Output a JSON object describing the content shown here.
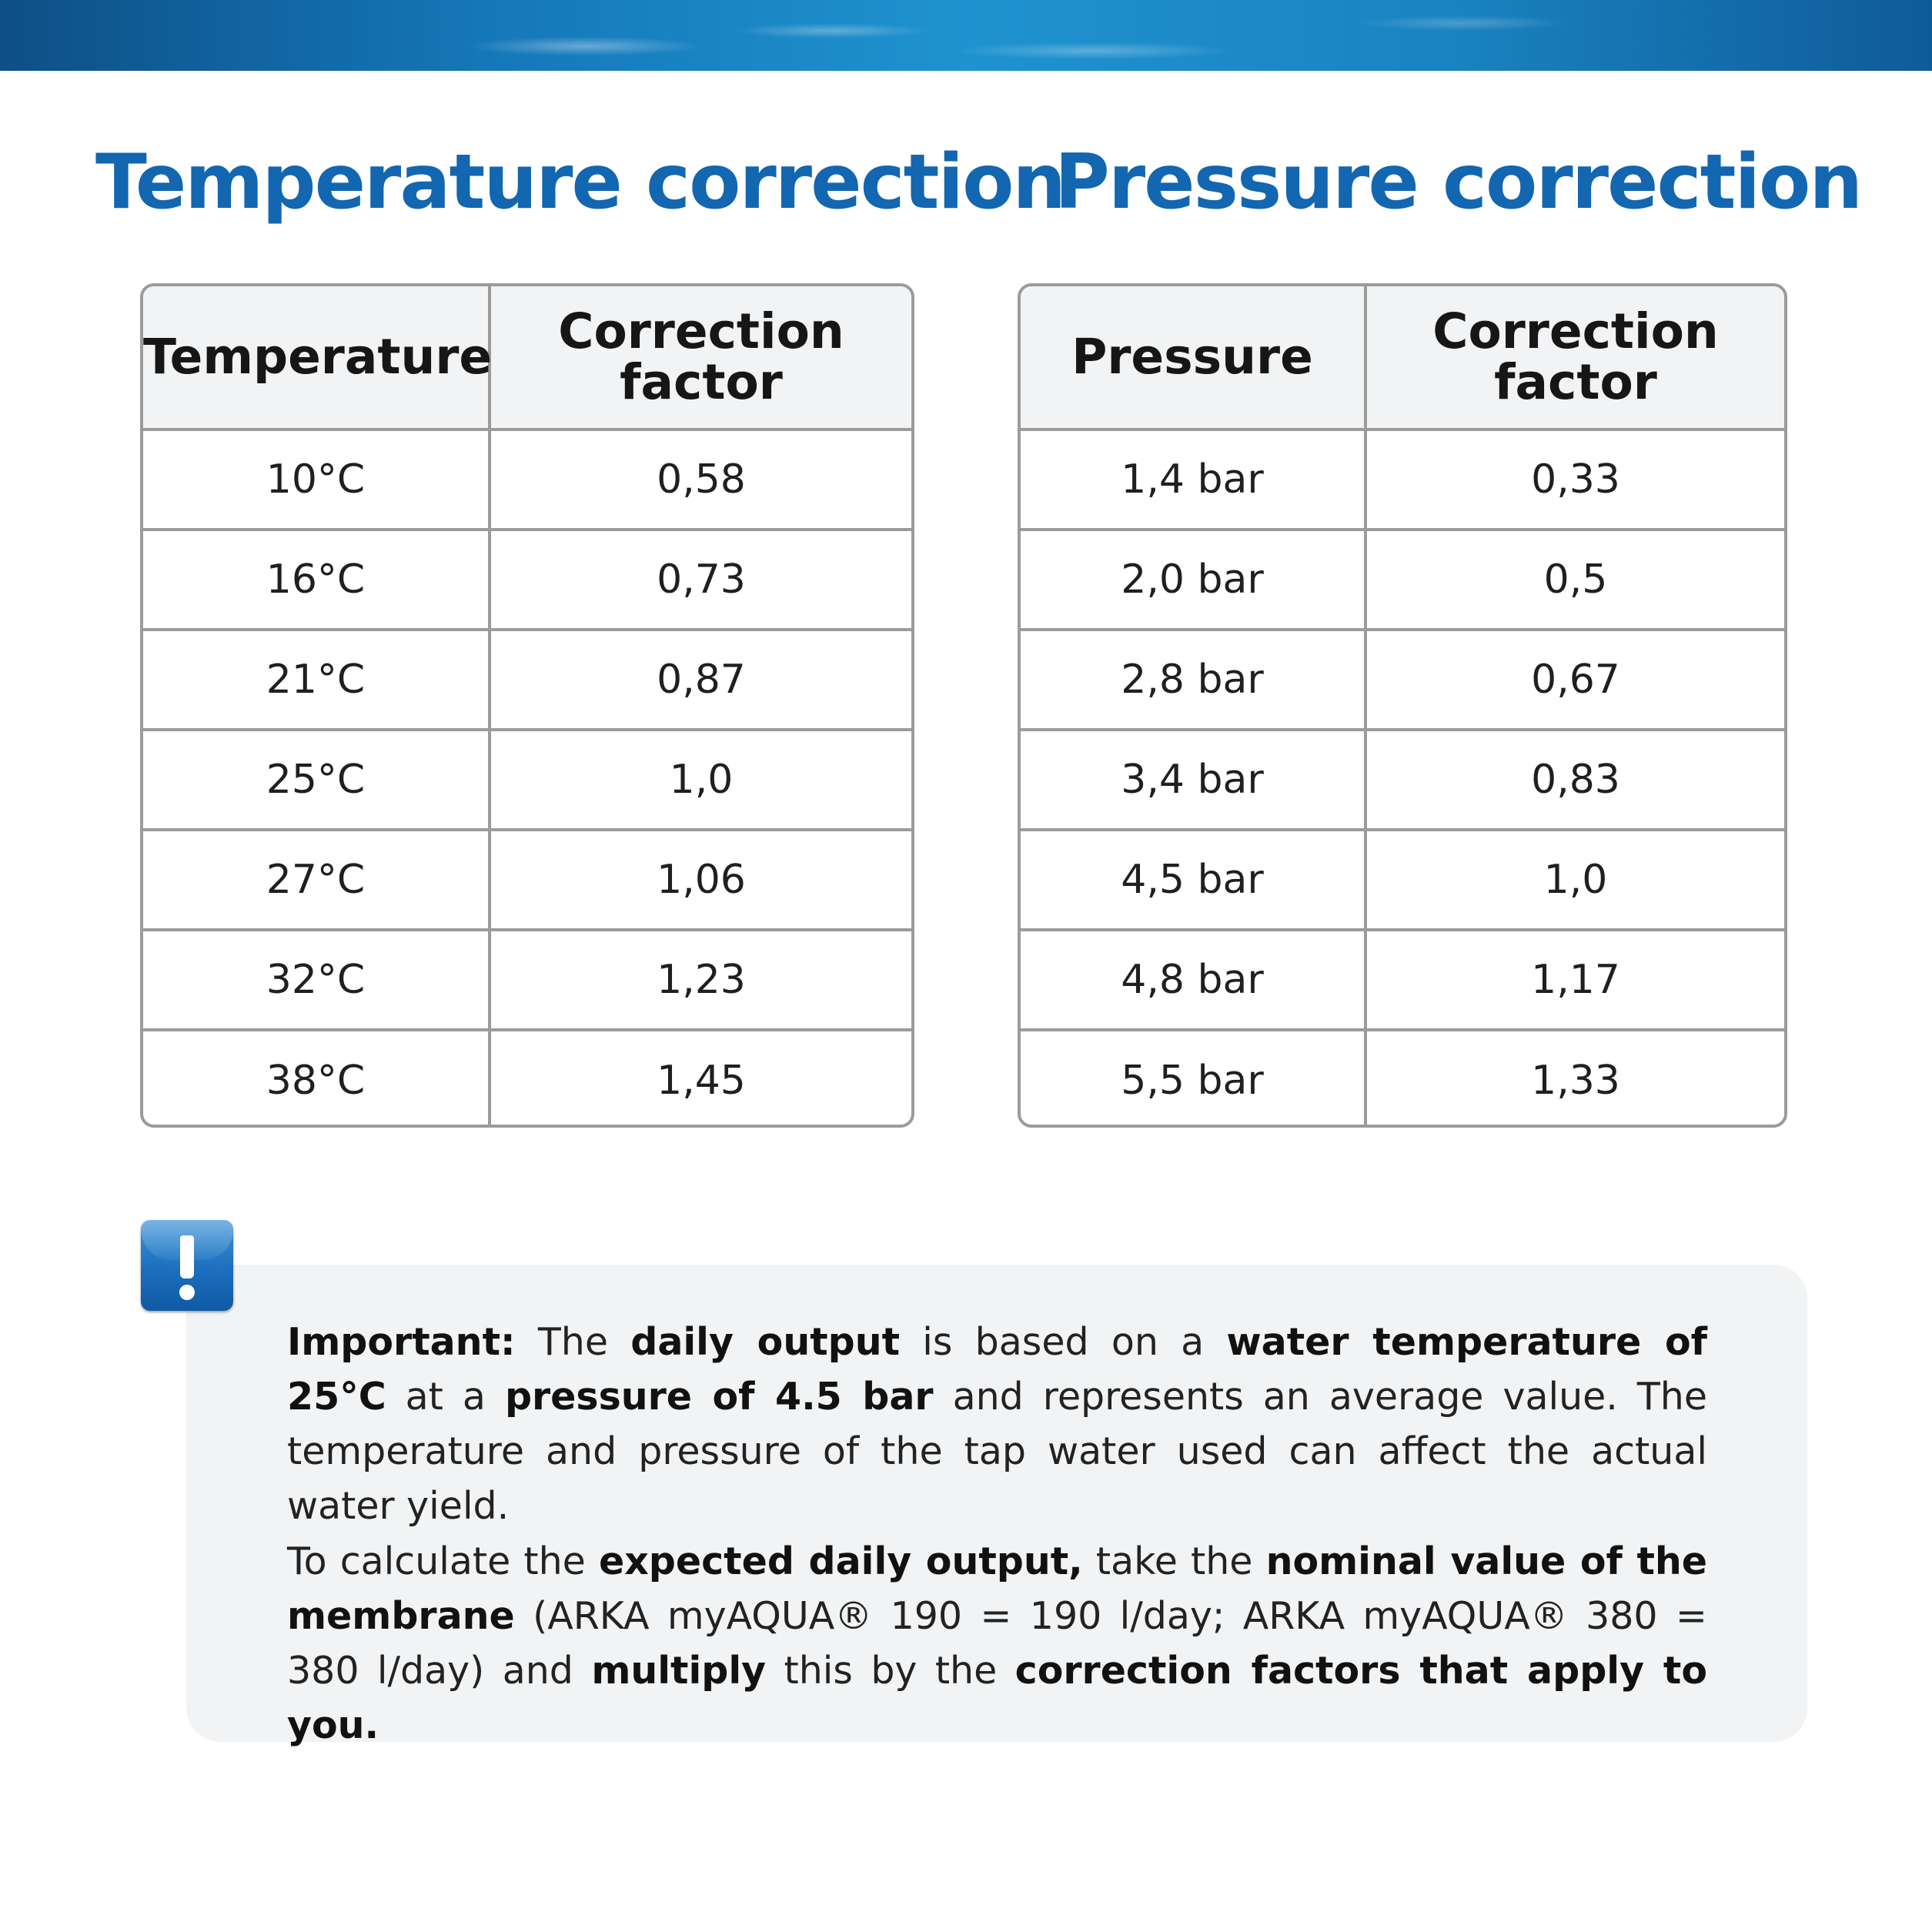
{
  "temperature": {
    "title": "Temperature correction",
    "col1_header": "Temperature",
    "col2_header_line1": "Correction",
    "col2_header_line2": "factor",
    "rows": [
      {
        "value": "10°C",
        "factor": "0,58"
      },
      {
        "value": "16°C",
        "factor": "0,73"
      },
      {
        "value": "21°C",
        "factor": "0,87"
      },
      {
        "value": "25°C",
        "factor": "1,0"
      },
      {
        "value": "27°C",
        "factor": "1,06"
      },
      {
        "value": "32°C",
        "factor": "1,23"
      },
      {
        "value": "38°C",
        "factor": "1,45"
      }
    ]
  },
  "pressure": {
    "title": "Pressure correction",
    "col1_header": "Pressure",
    "col2_header_line1": "Correction",
    "col2_header_line2": "factor",
    "rows": [
      {
        "value": "1,4 bar",
        "factor": "0,33"
      },
      {
        "value": "2,0 bar",
        "factor": "0,5"
      },
      {
        "value": "2,8 bar",
        "factor": "0,67"
      },
      {
        "value": "3,4 bar",
        "factor": "0,83"
      },
      {
        "value": "4,5 bar",
        "factor": "1,0"
      },
      {
        "value": "4,8 bar",
        "factor": "1,17"
      },
      {
        "value": "5,5 bar",
        "factor": "1,33"
      }
    ]
  },
  "note": {
    "icon": "exclamation-icon",
    "icon_color": "#1b6fbd",
    "para1": [
      {
        "text": "Important:",
        "bold": true
      },
      {
        "text": " The ",
        "bold": false
      },
      {
        "text": "daily output",
        "bold": true
      },
      {
        "text": " is based on a ",
        "bold": false
      },
      {
        "text": "water temperature of 25°C",
        "bold": true
      },
      {
        "text": " at a ",
        "bold": false
      },
      {
        "text": "pressure of 4.5 bar",
        "bold": true
      },
      {
        "text": " and represents an average value. The temperature and pressure of the tap water used can affect the actual water yield.",
        "bold": false
      }
    ],
    "para2": [
      {
        "text": "To calculate the ",
        "bold": false
      },
      {
        "text": "expected daily output,",
        "bold": true
      },
      {
        "text": " take the ",
        "bold": false
      },
      {
        "text": "nominal value of the membrane",
        "bold": true
      },
      {
        "text": " (ARKA myAQUA® 190 = 190 l/day; ARKA myAQUA® 380 = 380 l/day) and ",
        "bold": false
      },
      {
        "text": "multiply",
        "bold": true
      },
      {
        "text": " this by the ",
        "bold": false
      },
      {
        "text": "correction factors that apply to you.",
        "bold": true
      }
    ]
  },
  "colors": {
    "title_blue": "#1366b0",
    "header_bg": "#f2f3f4",
    "border_gray": "#9b9b9b",
    "note_bg": "#f2f3f4"
  }
}
